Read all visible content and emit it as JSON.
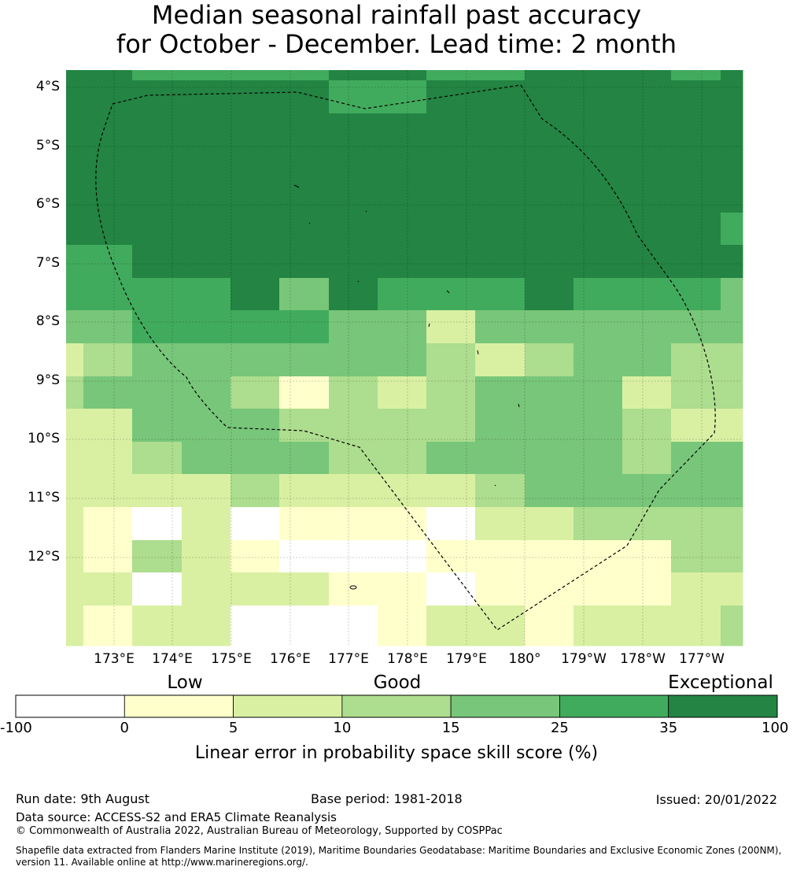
{
  "title_line1": "Median seasonal rainfall past accuracy",
  "title_line2": "for October - December. Lead time: 2 month",
  "lat_labels": [
    "4°S",
    "5°S",
    "6°S",
    "7°S",
    "8°S",
    "9°S",
    "10°S",
    "11°S",
    "12°S"
  ],
  "lon_labels": [
    "173°E",
    "174°E",
    "175°E",
    "176°E",
    "177°E",
    "178°E",
    "179°E",
    "180°",
    "179°W",
    "178°W",
    "177°W"
  ],
  "colorbar": {
    "categories": [
      "Low",
      "Good",
      "Exceptional"
    ],
    "ticks": [
      "-100",
      "0",
      "5",
      "10",
      "15",
      "25",
      "35",
      "100"
    ],
    "colors": [
      "#ffffff",
      "#ffffcc",
      "#d9f0a3",
      "#addd8e",
      "#78c679",
      "#41ab5d",
      "#238443"
    ],
    "label": "Linear error in probability space skill score (%)"
  },
  "grid_colors": {
    "0": "#ffffff",
    "1": "#ffffcc",
    "2": "#d9f0a3",
    "3": "#addd8e",
    "4": "#78c679",
    "5": "#41ab5d",
    "6": "#238443"
  },
  "skill_grid": [
    [
      6,
      6,
      5,
      5,
      5,
      5,
      6,
      6,
      5,
      5,
      6,
      6,
      6,
      5,
      6
    ],
    [
      6,
      6,
      6,
      6,
      6,
      6,
      5,
      5,
      6,
      6,
      6,
      6,
      6,
      6,
      6
    ],
    [
      6,
      6,
      6,
      6,
      6,
      6,
      6,
      6,
      6,
      6,
      6,
      6,
      6,
      6,
      6
    ],
    [
      6,
      6,
      6,
      6,
      6,
      6,
      6,
      6,
      6,
      6,
      6,
      6,
      6,
      6,
      6
    ],
    [
      6,
      6,
      6,
      6,
      6,
      6,
      6,
      6,
      6,
      6,
      6,
      6,
      6,
      6,
      6
    ],
    [
      6,
      6,
      6,
      6,
      6,
      6,
      6,
      6,
      6,
      6,
      6,
      6,
      6,
      6,
      5
    ],
    [
      5,
      5,
      6,
      6,
      6,
      6,
      6,
      6,
      6,
      6,
      6,
      6,
      6,
      6,
      6
    ],
    [
      5,
      5,
      5,
      5,
      6,
      4,
      6,
      5,
      5,
      5,
      6,
      5,
      5,
      5,
      4
    ],
    [
      4,
      4,
      5,
      5,
      5,
      5,
      4,
      4,
      2,
      4,
      4,
      4,
      4,
      4,
      4
    ],
    [
      2,
      3,
      4,
      4,
      4,
      4,
      4,
      4,
      3,
      2,
      3,
      4,
      4,
      3,
      3
    ],
    [
      3,
      4,
      4,
      4,
      3,
      1,
      3,
      2,
      3,
      4,
      4,
      4,
      2,
      3,
      3
    ],
    [
      2,
      2,
      4,
      4,
      4,
      3,
      3,
      3,
      3,
      4,
      4,
      4,
      3,
      2,
      2
    ],
    [
      2,
      2,
      3,
      4,
      4,
      4,
      3,
      3,
      4,
      4,
      4,
      4,
      3,
      4,
      4
    ],
    [
      2,
      2,
      2,
      2,
      3,
      2,
      2,
      2,
      2,
      3,
      4,
      4,
      4,
      4,
      4
    ],
    [
      2,
      1,
      0,
      2,
      0,
      1,
      1,
      1,
      0,
      2,
      2,
      3,
      3,
      3,
      3
    ],
    [
      2,
      1,
      3,
      2,
      1,
      0,
      0,
      0,
      1,
      1,
      1,
      1,
      1,
      3,
      3
    ],
    [
      2,
      2,
      0,
      2,
      2,
      2,
      1,
      1,
      0,
      1,
      1,
      1,
      1,
      2,
      2
    ],
    [
      2,
      1,
      2,
      2,
      0,
      0,
      0,
      1,
      2,
      2,
      1,
      2,
      2,
      2,
      3
    ]
  ],
  "footer": {
    "run_date": "Run date: 9th August",
    "base_period": "Base period: 1981-2018",
    "issued": "Issued: 20/01/2022",
    "data_source": "Data source: ACCESS-S2 and ERA5 Climate Reanalysis",
    "copyright": "© Commonwealth of Australia 2022, Australian Bureau of Meteorology, Supported by COSPPac",
    "shapefile_line1": "Shapefile data extracted from Flanders Marine Institute (2019), Maritime Boundaries Geodatabase: Maritime Boundaries and Exclusive Economic Zones (200NM),",
    "shapefile_line2": "version 11. Available online at http://www.marineregions.org/."
  }
}
